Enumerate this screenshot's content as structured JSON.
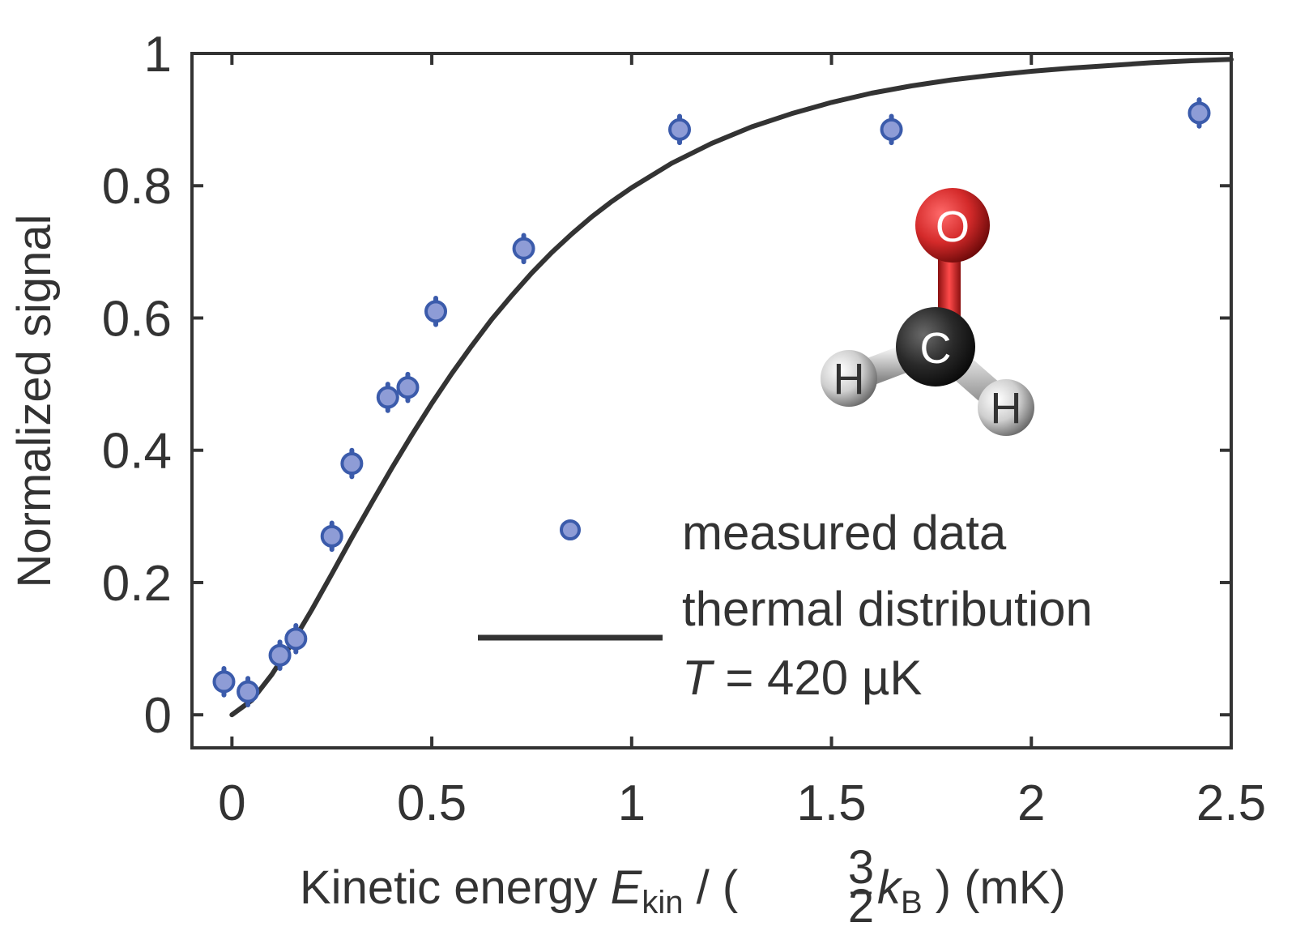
{
  "chart_data": {
    "type": "scatter",
    "xlabel": {
      "prefix": "Kinetic energy ",
      "e_symbol": "E",
      "e_sub": "kin",
      "divider": " / ( ",
      "frac_num": "3",
      "frac_den": "2",
      "k_symbol": "k",
      "k_sub": "B",
      "suffix": " ) (mK)"
    },
    "ylabel": "Normalized signal",
    "xlim": [
      -0.1,
      2.5
    ],
    "ylim": [
      -0.05,
      1.0
    ],
    "xticks": [
      0,
      0.5,
      1,
      1.5,
      2,
      2.5
    ],
    "xtick_labels": [
      "0",
      "0.5",
      "1",
      "1.5",
      "2",
      "2.5"
    ],
    "yticks": [
      0,
      0.2,
      0.4,
      0.6,
      0.8,
      1
    ],
    "ytick_labels": [
      "0",
      "0.2",
      "0.4",
      "0.6",
      "0.8",
      "1"
    ],
    "series": [
      {
        "name": "measured data",
        "kind": "scatter_errorbar",
        "color": "#8e9cd6",
        "edge_color": "#3b5bab",
        "x": [
          -0.02,
          0.04,
          0.12,
          0.16,
          0.25,
          0.3,
          0.39,
          0.44,
          0.51,
          0.73,
          1.12,
          1.65,
          2.42
        ],
        "y": [
          0.05,
          0.035,
          0.09,
          0.115,
          0.27,
          0.38,
          0.48,
          0.495,
          0.61,
          0.705,
          0.885,
          0.885,
          0.91
        ],
        "err": [
          0.02,
          0.02,
          0.02,
          0.02,
          0.02,
          0.02,
          0.02,
          0.02,
          0.02,
          0.02,
          0.02,
          0.02,
          0.02
        ]
      },
      {
        "name": "thermal distribution",
        "kind": "line",
        "color": "#333333",
        "x": [
          0.0,
          0.05,
          0.1,
          0.15,
          0.2,
          0.25,
          0.3,
          0.35,
          0.4,
          0.45,
          0.5,
          0.55,
          0.6,
          0.65,
          0.7,
          0.75,
          0.8,
          0.85,
          0.9,
          0.95,
          1.0,
          1.1,
          1.2,
          1.3,
          1.4,
          1.5,
          1.6,
          1.7,
          1.8,
          1.9,
          2.0,
          2.1,
          2.2,
          2.3,
          2.4,
          2.5
        ],
        "y": [
          0.0,
          0.022,
          0.061,
          0.108,
          0.159,
          0.213,
          0.268,
          0.321,
          0.373,
          0.423,
          0.471,
          0.516,
          0.558,
          0.598,
          0.634,
          0.668,
          0.699,
          0.727,
          0.753,
          0.776,
          0.797,
          0.834,
          0.864,
          0.889,
          0.909,
          0.926,
          0.94,
          0.951,
          0.96,
          0.967,
          0.973,
          0.978,
          0.982,
          0.986,
          0.989,
          0.991
        ]
      }
    ],
    "legend": {
      "position": "lower-right",
      "entries": [
        "measured data",
        "thermal distribution"
      ],
      "annotation": {
        "symbol": "T",
        "text": " = 420 µK"
      }
    },
    "inset": {
      "description": "formaldehyde molecule ball-and-stick",
      "atoms": [
        "O",
        "C",
        "H",
        "H"
      ],
      "colors": {
        "O": "#d42a2a",
        "C": "#2a2a2a",
        "H": "#d8d8d8"
      }
    }
  }
}
